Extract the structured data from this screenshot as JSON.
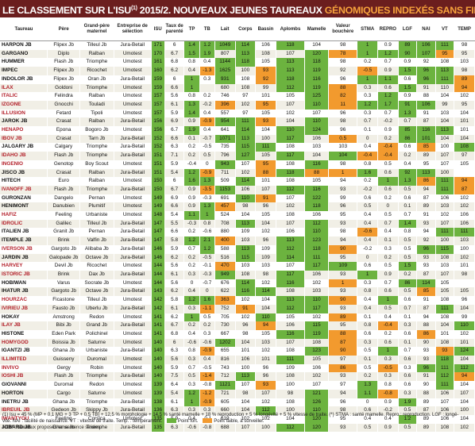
{
  "title": {
    "main": "LE CLASSEMENT SUR L'ISU",
    "sup": "(1)",
    "rest": " 2015/2. NOUVEAUX JEUNES TAUREAUX ",
    "highlight": "GÉNOMIQUES INDEXÉS SANS FILLES"
  },
  "columns": [
    "Taureau",
    "Père",
    "Grand-père maternel",
    "Entreprise de sélection",
    "ISU",
    "Taux de parenté",
    "TP",
    "TB",
    "Lait",
    "Corps",
    "Bassin",
    "Aplombs",
    "Mamelle",
    "Valeur bouchère",
    "STMA",
    "REPRO",
    "LGF",
    "NAI",
    "VT",
    "TEMP"
  ],
  "rows": [
    [
      "HARPON JB",
      "Flipex Jb",
      "Tilleul Jb",
      "Jura-Betail",
      "171",
      "6",
      "1.4",
      "1.2",
      "1049",
      "114",
      "106",
      "118",
      "104",
      "98",
      "1",
      "0.9",
      "89",
      "106",
      "111",
      "98"
    ],
    [
      "GARGANO",
      "Diplo",
      "Ralban",
      "Umotest",
      "170",
      "6.7",
      "1.5",
      "1.9",
      "807",
      "113",
      "108",
      "107",
      "120",
      "78",
      "1",
      "1.2",
      "90",
      "107",
      "95",
      "95"
    ],
    [
      "HUMMER",
      "Flash Jb",
      "Triomphe",
      "Umotest",
      "161",
      "6.8",
      "0.8",
      "0.4",
      "1144",
      "118",
      "105",
      "113",
      "118",
      "98",
      "0.2",
      "0.7",
      "0.9",
      "92",
      "108",
      "103"
    ],
    [
      "IMPEC",
      "Flipex Jb",
      "Ricochet",
      "Umotest",
      "160",
      "6.2",
      "0.4",
      "-1.3",
      "1625",
      "100",
      "93",
      "113",
      "119",
      "92",
      "-0.5",
      "0.9",
      "1.5",
      "96",
      "113",
      "98"
    ],
    [
      "INDOLOR JB",
      "Flipex Jb",
      "Oran Jb",
      "Jura-Betail",
      "159",
      "6",
      "1",
      "0.3",
      "931",
      "108",
      "92",
      "118",
      "116",
      "96",
      "1",
      "1.1",
      "0.6",
      "96",
      "111",
      "89"
    ],
    [
      "ILAX",
      "Goldoni",
      "Triomphe",
      "Umotest",
      "159",
      "6.6",
      "1",
      "",
      "680",
      "108",
      "99",
      "112",
      "119",
      "88",
      "0.3",
      "0.6",
      "1.5",
      "91",
      "110",
      "94"
    ],
    [
      "ITALIC",
      "Felindra",
      "Ralban",
      "Umotest",
      "157",
      "5.6",
      "0.8",
      "0.2",
      "746",
      "97",
      "101",
      "105",
      "125",
      "82",
      "0.3",
      "1.2",
      "0.9",
      "88",
      "104",
      "102"
    ],
    [
      "IZGONE",
      "Gnocchi",
      "Touladi",
      "Umotest",
      "157",
      "6.1",
      "1.3",
      "-0.2",
      "396",
      "102",
      "95",
      "107",
      "110",
      "11",
      "1.2",
      "1.7",
      "91",
      "106",
      "99",
      "95"
    ],
    [
      "ILLUSION",
      "Fetard",
      "Tipoli",
      "Umotest",
      "157",
      "5.9",
      "1.4",
      "0.4",
      "557",
      "97",
      "105",
      "102",
      "107",
      "96",
      "0.3",
      "0.7",
      "1.3",
      "91",
      "103",
      "104"
    ],
    [
      "JAROK JB",
      "Crasat",
      "Ralban",
      "Jura-Betail",
      "156",
      "6.9",
      "0.9",
      "-0.9",
      "954",
      "111",
      "93",
      "104",
      "110",
      "98",
      "0.7",
      "-0.2",
      "0.7",
      "87",
      "104",
      "101"
    ],
    [
      "HENAPO",
      "Epona",
      "Bogoro Jb",
      "Umotest",
      "156",
      "6.7",
      "1.9",
      "0.4",
      "641",
      "114",
      "104",
      "110",
      "124",
      "96",
      "0.1",
      "0.9",
      "85",
      "116",
      "113",
      "101"
    ],
    [
      "IBOV JB",
      "Crasat",
      "Tarn Jb",
      "Jura-Betail",
      "152",
      "6.6",
      "0.1",
      "-0.7",
      "1071",
      "113",
      "100",
      "117",
      "106",
      "0.5",
      "0",
      "0.2",
      "86",
      "101",
      "104",
      "104"
    ],
    [
      "JALGARY JB",
      "Calgary",
      "Triomphe",
      "Jura-Betail",
      "152",
      "6.3",
      "0.2",
      "-0.5",
      "735",
      "115",
      "111",
      "108",
      "103",
      "103",
      "0.4",
      "-0.4",
      "0.6",
      "85",
      "100",
      "108"
    ],
    [
      "IDAHO JB",
      "Flash Jb",
      "Triomphe",
      "Jura-Betail",
      "151",
      "7.1",
      "0.2",
      "0.5",
      "796",
      "127",
      "105",
      "117",
      "104",
      "104",
      "-0.4",
      "-0.4",
      "0.2",
      "89",
      "107",
      "97"
    ],
    [
      "INGENIO",
      "Genotop",
      "Boy Scout",
      "Umotest",
      "151",
      "5.9",
      "-0.4",
      "0",
      "943",
      "107",
      "95",
      "108",
      "116",
      "98",
      "0.8",
      "0.5",
      "0.4",
      "95",
      "107",
      "105"
    ],
    [
      "JISCO JB",
      "Crasat",
      "Ralban",
      "Jura-Betail",
      "151",
      "5.4",
      "1.2",
      "-0.9",
      "711",
      "102",
      "88",
      "118",
      "88",
      "1",
      "1.6",
      "0.6",
      "92",
      "113",
      "100"
    ],
    [
      "HITECH",
      "Euro",
      "Ralban",
      "Umotest",
      "150",
      "6",
      "1.6",
      "1.3",
      "509",
      "114",
      "101",
      "108",
      "105",
      "94",
      "0.2",
      "1",
      "1.3",
      "86",
      "111",
      "94"
    ],
    [
      "IVANOFF JB",
      "Flash Jb",
      "Triomphe",
      "Jura-Betail",
      "150",
      "6.7",
      "0.9",
      "-3.5",
      "1153",
      "106",
      "107",
      "112",
      "116",
      "93",
      "-0.2",
      "0.6",
      "0.5",
      "94",
      "111",
      "87"
    ],
    [
      "GURONZAN",
      "Dangelo",
      "Pernan",
      "Umotest",
      "149",
      "6.9",
      "0.9",
      "-0.3",
      "691",
      "110",
      "91",
      "107",
      "122",
      "99",
      "0.6",
      "0.2",
      "0.6",
      "87",
      "106",
      "102"
    ],
    [
      "HENIMONT",
      "Danubien",
      "Plumitif",
      "Umotest",
      "149",
      "6.6",
      "0.9",
      "1.3",
      "457",
      "98",
      "96",
      "102",
      "118",
      "96",
      "0.5",
      "0",
      "0.1",
      "89",
      "103",
      "102"
    ],
    [
      "HAFIZ",
      "Feeling",
      "Urbaniste",
      "Umotest",
      "148",
      "5.4",
      "1.1",
      "1",
      "524",
      "104",
      "105",
      "108",
      "106",
      "95",
      "0.4",
      "0.5",
      "0.7",
      "91",
      "102",
      "106"
    ],
    [
      "IDROLIC",
      "Galilec",
      "Tilleul Jb",
      "Jura-Betail",
      "147",
      "5.5",
      "-0.3",
      "0.8",
      "708",
      "113",
      "104",
      "107",
      "112",
      "93",
      "0.4",
      "0.7",
      "1.4",
      "93",
      "107",
      "106"
    ],
    [
      "ITALIEN JB",
      "Granit Jb",
      "Pernan",
      "Jura-Betail",
      "147",
      "6.6",
      "0.2",
      "-0.6",
      "880",
      "109",
      "102",
      "106",
      "110",
      "98",
      "-0.6",
      "0.4",
      "0.8",
      "94",
      "111",
      "111"
    ],
    [
      "ITEMPLE JB",
      "Brink",
      "Valfin Jb",
      "Jura-Betail",
      "147",
      "5.8",
      "1.2",
      "2.1",
      "400",
      "103",
      "96",
      "113",
      "123",
      "94",
      "0.4",
      "0.1",
      "0.5",
      "92",
      "100",
      "103"
    ],
    [
      "IVERSON JB",
      "Gargoto Jb",
      "Alibaba Jb",
      "Jura-Betail",
      "146",
      "5.9",
      "0.7",
      "1.2",
      "588",
      "113",
      "109",
      "112",
      "118",
      "90",
      "-0.2",
      "0.3",
      "0.5",
      "96",
      "115",
      "100"
    ],
    [
      "JARDIN JB",
      "Galopade Jb",
      "Octave Jb",
      "Jura-Betail",
      "146",
      "6.2",
      "0.2",
      "-0.5",
      "516",
      "115",
      "109",
      "114",
      "111",
      "95",
      "0",
      "0.2",
      "0.5",
      "93",
      "108",
      "102"
    ],
    [
      "HARVEY",
      "Devil Jb",
      "Ricochet",
      "Umotest",
      "144",
      "5.6",
      "0.2",
      "-0.1",
      "470",
      "103",
      "103",
      "107",
      "117",
      "109",
      "0.6",
      "0.5",
      "1.5",
      "93",
      "103",
      "101"
    ],
    [
      "ISTORIC JB",
      "Brink",
      "Dax Jb",
      "Jura-Betail",
      "144",
      "6.1",
      "0.3",
      "-0.3",
      "949",
      "108",
      "98",
      "117",
      "106",
      "93",
      "1",
      "0.9",
      "0.2",
      "87",
      "107",
      "98"
    ],
    [
      "HOBIWAN",
      "Varus",
      "Socrate Jb",
      "Umotest",
      "144",
      "5.6",
      "0",
      "-0.7",
      "676",
      "114",
      "102",
      "116",
      "102",
      "1",
      "0.3",
      "0.7",
      "86",
      "114",
      "105"
    ],
    [
      "IHATUR JB",
      "Gargoto Jb",
      "Octave Jb",
      "Jura-Betail",
      "143",
      "6.2",
      "0.4",
      "0",
      "622",
      "116",
      "114",
      "108",
      "103",
      "93",
      "0.8",
      "0.6",
      "0.5",
      "85",
      "105",
      "105"
    ],
    [
      "HOURZAC",
      "Ficastone",
      "Tilleul Jb",
      "Umotest",
      "142",
      "5.8",
      "1.2",
      "1.6",
      "363",
      "102",
      "104",
      "113",
      "110",
      "90",
      "0.4",
      "1",
      "0.6",
      "91",
      "108",
      "96"
    ],
    [
      "IVIRIEU JB",
      "Fausto Jb",
      "Uberlu Jb",
      "Jura-Betail",
      "142",
      "6.1",
      "0.3",
      "-1.1",
      "752",
      "91",
      "104",
      "112",
      "117",
      "93",
      "0.4",
      "0.5",
      "0.7",
      "87",
      "111",
      "104"
    ],
    [
      "HOKAY",
      "Amstrong",
      "Redon",
      "Umotest",
      "141",
      "6.2",
      "1",
      "0.5",
      "705",
      "102",
      "110",
      "105",
      "102",
      "89",
      "0.1",
      "0.4",
      "0.1",
      "94",
      "108",
      "99"
    ],
    [
      "ILAY JB",
      "Bibi Jb",
      "Grand Jb",
      "Jura-Betail",
      "141",
      "6.7",
      "0.2",
      "0.2",
      "730",
      "96",
      "94",
      "106",
      "115",
      "95",
      "0.8",
      "-0.4",
      "0.3",
      "88",
      "104",
      "110"
    ],
    [
      "HISTONE",
      "Eden Park",
      "Polichinel",
      "Umotest",
      "141",
      "6.8",
      "0.4",
      "0.3",
      "667",
      "98",
      "105",
      "116",
      "119",
      "88",
      "0.6",
      "0.2",
      "0.6",
      "86",
      "101",
      "102"
    ],
    [
      "HOMYGOD",
      "Boissia Jb",
      "Saturne",
      "Umotest",
      "140",
      "6",
      "-0.6",
      "-0.6",
      "1202",
      "104",
      "103",
      "107",
      "108",
      "87",
      "0.3",
      "0.6",
      "0.1",
      "90",
      "108",
      "101"
    ],
    [
      "IGANTZI JB",
      "Ghana Jb",
      "Urbaniste",
      "Jura-Betail",
      "140",
      "6.3",
      "0.8",
      "-0.9",
      "655",
      "101",
      "102",
      "108",
      "123",
      "90",
      "0.5",
      "1",
      "0.7",
      "93",
      "93",
      "124"
    ],
    [
      "ILLIMITED",
      "Guisseny",
      "Duromal",
      "Umotest",
      "140",
      "5.6",
      "0.3",
      "0.4",
      "816",
      "106",
      "101",
      "111",
      "105",
      "97",
      "0.1",
      "0.3",
      "0.6",
      "93",
      "118",
      "104"
    ],
    [
      "INVIVO",
      "Gergy",
      "Robin",
      "Umotest",
      "140",
      "5.9",
      "0.7",
      "-0.5",
      "743",
      "100",
      "96",
      "109",
      "106",
      "86",
      "0.5",
      "-0.5",
      "0.3",
      "96",
      "111",
      "112"
    ],
    [
      "IOSHI JB",
      "Flash Jb",
      "Triomphe",
      "Jura-Betail",
      "140",
      "7.5",
      "0.5",
      "-1.4",
      "712",
      "113",
      "96",
      "108",
      "102",
      "93",
      "0.2",
      "0.3",
      "0.6",
      "91",
      "112",
      "94"
    ],
    [
      "GIOVANNI",
      "Duromal",
      "Redon",
      "Umotest",
      "139",
      "6.4",
      "0.3",
      "-0.8",
      "1121",
      "107",
      "93",
      "100",
      "107",
      "97",
      "1.3",
      "0.8",
      "0.6",
      "90",
      "111",
      "104"
    ],
    [
      "HORTON",
      "Cargo",
      "Saturne",
      "Umotest",
      "139",
      "5.4",
      "1.2",
      "-1.2",
      "721",
      "98",
      "107",
      "98",
      "121",
      "94",
      "1.1",
      "-0.8",
      "0.3",
      "88",
      "106",
      "107"
    ],
    [
      "INETRU JB",
      "Ghana Jb",
      "Triomphe",
      "Jura-Betail",
      "138",
      "6.1",
      "1",
      "-0.9",
      "605",
      "104",
      "102",
      "108",
      "126",
      "96",
      "0",
      "0.9",
      "1.9",
      "89",
      "107",
      "104"
    ],
    [
      "IBREUIL JB",
      "Gedeon Jb",
      "Skippy Jb",
      "Jura-Betail",
      "136",
      "6.3",
      "0.3",
      "0.3",
      "660",
      "104",
      "112",
      "100",
      "110",
      "98",
      "0.6",
      "-0.2",
      "0.5",
      "87",
      "106",
      "100"
    ],
    [
      "IWANTYOU",
      "Feeling",
      "Corsica",
      "Umotest",
      "135",
      "5.9",
      "0.4",
      "-0.1",
      "619",
      "102",
      "102",
      "104",
      "120",
      "95",
      "0.4",
      "0.4",
      "1.2",
      "89",
      "106",
      "104"
    ],
    [
      "JOBARD JB",
      "Ghana Jb",
      "Triomphe",
      "Jura-Betail",
      "135",
      "6.3",
      "-0.6",
      "-0.8",
      "688",
      "107",
      "100",
      "112",
      "120",
      "93",
      "0.5",
      "0.9",
      "0.5",
      "89",
      "108",
      "102"
    ]
  ],
  "colors": {
    "green": "#6cb33f",
    "orange": "#f29a2e",
    "title_bg": "#6b1e1e",
    "title_highlight": "#f6a23c",
    "red_name": "#b3202a"
  },
  "footer": {
    "line1": "(1) Isu = 45 % (MP + 0,1 MG + 3 TP + 0,5 TB) + 12,5 % morphologie + 14,5 % santé mamelle + 18 % reproduction + 5 % longévité + 5 % vitesse de traite. (*) STMA : santé mamelle. Repro : reproduction. LGF : longé-",
    "line2": "vité. NAI : facilité de naissance. VT : vitesse de traite. Temp. : tempérament.",
    "legend_green": "Point fort.",
    "legend_orange": "Point faible, à surveiller.",
    "line3": "NDM : taureaux proposés en semence sexées."
  }
}
